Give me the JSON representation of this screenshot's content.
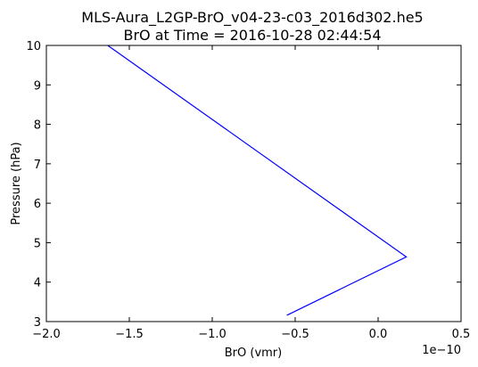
{
  "chart_data": {
    "type": "line",
    "title": "MLS-Aura_L2GP-BrO_v04-23-c03_2016d302.he5",
    "subtitle": "BrO at Time = 2016-10-28 02:44:54",
    "xlabel": "BrO (vmr)",
    "ylabel": "Pressure (hPa)",
    "x_multiplier_label": "1e−10",
    "xlim": [
      -2.0,
      0.5
    ],
    "ylim": [
      3,
      10
    ],
    "xticks": [
      -2.0,
      -1.5,
      -1.0,
      -0.5,
      0.0,
      0.5
    ],
    "xtick_labels": [
      "−2.0",
      "−1.5",
      "−1.0",
      "−0.5",
      "0.0",
      "0.5"
    ],
    "yticks": [
      3,
      4,
      5,
      6,
      7,
      8,
      9,
      10
    ],
    "ytick_labels": [
      "3",
      "4",
      "5",
      "6",
      "7",
      "8",
      "9",
      "10"
    ],
    "grid": false,
    "legend": "none",
    "series": [
      {
        "color": "#0000ff",
        "x": [
          -0.55,
          0.17,
          -1.63
        ],
        "y": [
          3.16,
          4.64,
          10.0
        ]
      }
    ]
  }
}
